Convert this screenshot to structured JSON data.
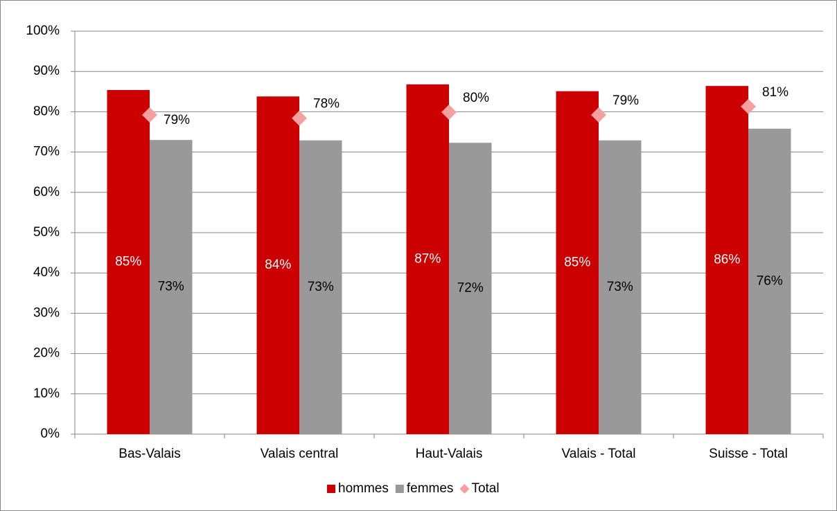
{
  "chart_data": {
    "type": "bar",
    "categories": [
      "Bas-Valais",
      "Valais central",
      "Haut-Valais",
      "Valais - Total",
      "Suisse - Total"
    ],
    "series": [
      {
        "name": "hommes",
        "type": "bar",
        "color": "#cc0000",
        "label_color": "#ffffff",
        "values": [
          85.4,
          83.8,
          86.8,
          85.1,
          86.4
        ],
        "value_labels": [
          "85%",
          "84%",
          "87%",
          "85%",
          "86%"
        ]
      },
      {
        "name": "femmes",
        "type": "bar",
        "color": "#999999",
        "label_color": "#000000",
        "values": [
          73.0,
          72.9,
          72.3,
          72.9,
          75.8
        ],
        "value_labels": [
          "73%",
          "73%",
          "72%",
          "73%",
          "76%"
        ]
      },
      {
        "name": "Total",
        "type": "marker",
        "color": "#f4a0a0",
        "label_color": "#000000",
        "values": [
          79.2,
          78.4,
          79.9,
          79.2,
          81.3
        ],
        "value_labels": [
          "79%",
          "78%",
          "80%",
          "79%",
          "81%"
        ]
      }
    ],
    "ylim": [
      0,
      100
    ],
    "yticks": [
      {
        "value": 0,
        "label": "0%"
      },
      {
        "value": 10,
        "label": "10%"
      },
      {
        "value": 20,
        "label": "20%"
      },
      {
        "value": 30,
        "label": "30%"
      },
      {
        "value": 40,
        "label": "40%"
      },
      {
        "value": 50,
        "label": "50%"
      },
      {
        "value": 60,
        "label": "60%"
      },
      {
        "value": 70,
        "label": "70%"
      },
      {
        "value": 80,
        "label": "80%"
      },
      {
        "value": 90,
        "label": "90%"
      },
      {
        "value": 100,
        "label": "100%"
      }
    ],
    "grid": true,
    "legend": "bottom"
  }
}
